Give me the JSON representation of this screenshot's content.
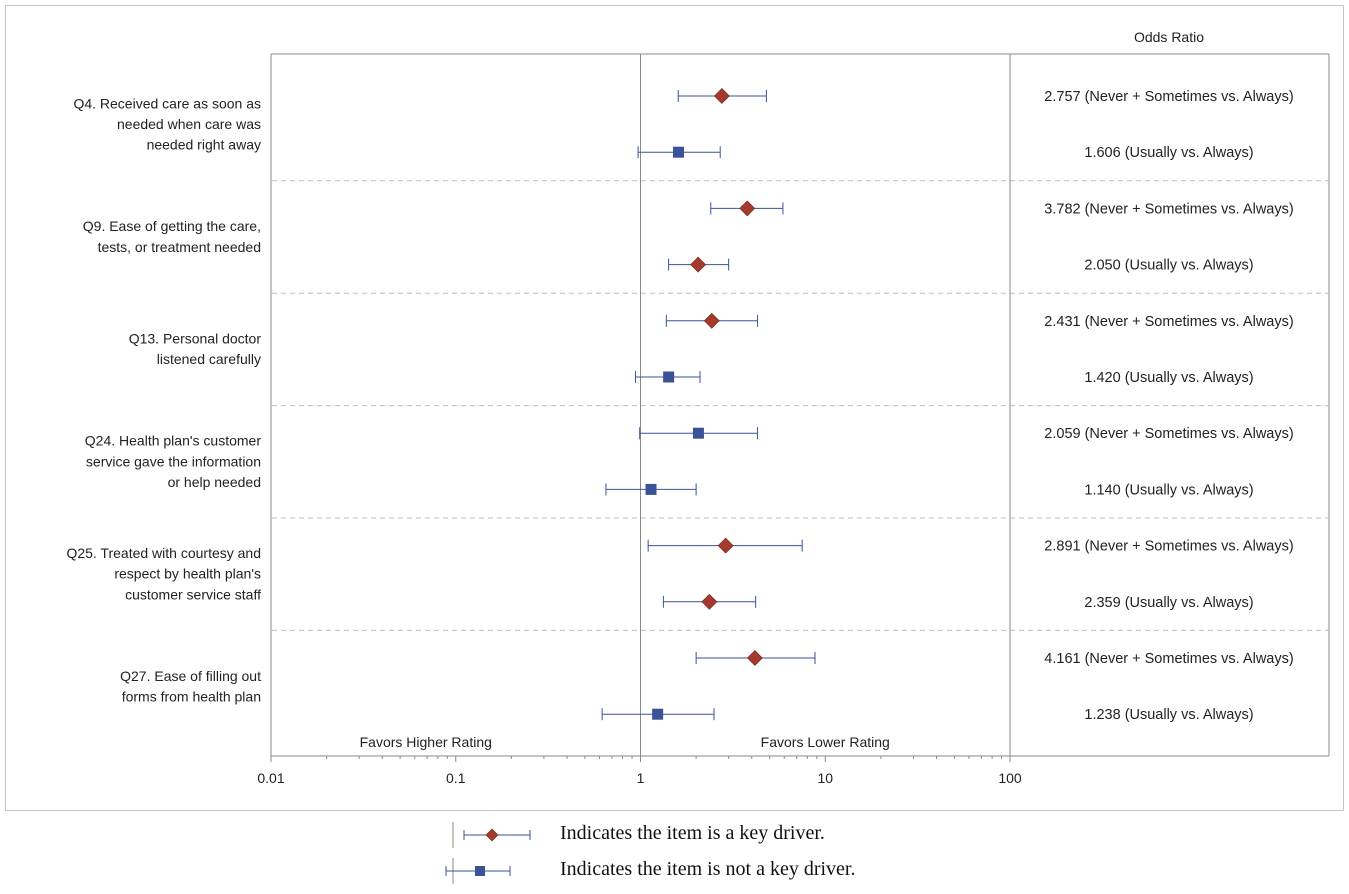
{
  "chart_data": {
    "type": "forest",
    "title": "",
    "column_header": "Odds Ratio",
    "x_scale": "log",
    "xlim": [
      0.01,
      100
    ],
    "x_ticks": [
      {
        "value": 0.01,
        "label": "0.01"
      },
      {
        "value": 0.1,
        "label": "0.1"
      },
      {
        "value": 1,
        "label": "1"
      },
      {
        "value": 10,
        "label": "10"
      },
      {
        "value": 100,
        "label": "100"
      }
    ],
    "reference_line": 1,
    "favors_left": "Favors Higher Rating",
    "favors_right": "Favors Lower Rating",
    "colors": {
      "key_driver": "#a43a2e",
      "not_key_driver": "#3b5296",
      "whisker": "#3b5296",
      "reference": "#8a8a8a",
      "separator": "#bdbdbd"
    },
    "groups": [
      {
        "label": [
          "Q4. Received care as soon as",
          "needed when care was",
          "needed right away"
        ],
        "rows": [
          {
            "or": 2.757,
            "lcl": 1.6,
            "ucl": 4.8,
            "key_driver": true,
            "text": "2.757 (Never + Sometimes vs. Always)"
          },
          {
            "or": 1.606,
            "lcl": 0.97,
            "ucl": 2.7,
            "key_driver": false,
            "text": "1.606 (Usually vs. Always)"
          }
        ]
      },
      {
        "label": [
          "Q9. Ease of getting the care,",
          "tests, or treatment needed"
        ],
        "rows": [
          {
            "or": 3.782,
            "lcl": 2.4,
            "ucl": 5.9,
            "key_driver": true,
            "text": "3.782 (Never + Sometimes vs. Always)"
          },
          {
            "or": 2.05,
            "lcl": 1.42,
            "ucl": 3.0,
            "key_driver": true,
            "text": "2.050 (Usually vs. Always)"
          }
        ]
      },
      {
        "label": [
          "Q13. Personal doctor",
          "listened carefully"
        ],
        "rows": [
          {
            "or": 2.431,
            "lcl": 1.38,
            "ucl": 4.3,
            "key_driver": true,
            "text": "2.431 (Never + Sometimes vs. Always)"
          },
          {
            "or": 1.42,
            "lcl": 0.94,
            "ucl": 2.1,
            "key_driver": false,
            "text": "1.420 (Usually vs. Always)"
          }
        ]
      },
      {
        "label": [
          "Q24. Health plan's customer",
          "service gave the information",
          "or help needed"
        ],
        "rows": [
          {
            "or": 2.059,
            "lcl": 0.99,
            "ucl": 4.3,
            "key_driver": false,
            "text": "2.059 (Never + Sometimes vs. Always)"
          },
          {
            "or": 1.14,
            "lcl": 0.65,
            "ucl": 2.0,
            "key_driver": false,
            "text": "1.140 (Usually vs. Always)"
          }
        ]
      },
      {
        "label": [
          "Q25. Treated with courtesy and",
          "respect by health plan's",
          "customer service staff"
        ],
        "rows": [
          {
            "or": 2.891,
            "lcl": 1.1,
            "ucl": 7.5,
            "key_driver": true,
            "text": "2.891 (Never + Sometimes vs. Always)"
          },
          {
            "or": 2.359,
            "lcl": 1.33,
            "ucl": 4.2,
            "key_driver": true,
            "text": "2.359 (Usually vs. Always)"
          }
        ]
      },
      {
        "label": [
          "Q27. Ease of filling out",
          "forms from health plan"
        ],
        "rows": [
          {
            "or": 4.161,
            "lcl": 2.0,
            "ucl": 8.8,
            "key_driver": true,
            "text": "4.161 (Never + Sometimes vs. Always)"
          },
          {
            "or": 1.238,
            "lcl": 0.62,
            "ucl": 2.5,
            "key_driver": false,
            "text": "1.238 (Usually vs. Always)"
          }
        ]
      }
    ]
  },
  "legend": {
    "key_driver_text": "Indicates the item is a key driver.",
    "not_key_driver_text": "Indicates the item is not a key driver."
  }
}
